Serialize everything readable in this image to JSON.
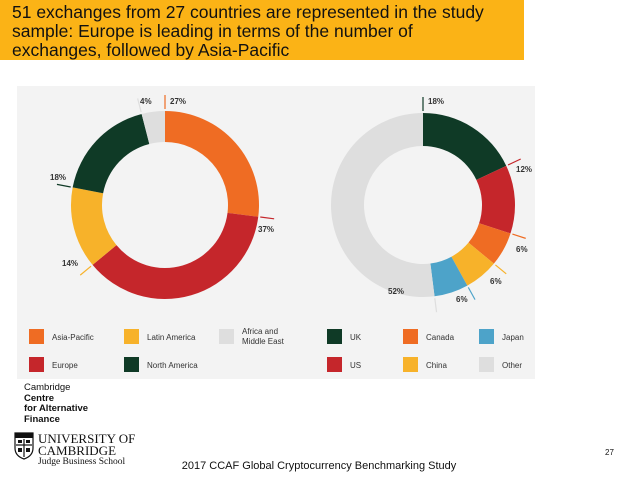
{
  "slide": {
    "title_lines": [
      "51 exchanges from 27 countries are represented in the study",
      "sample: Europe is leading in terms of the number of",
      "exchanges, followed by Asia-Pacific"
    ],
    "footer": "2017 CCAF Global Cryptocurrency Benchmarking Study",
    "page_number": "27",
    "logo_ccaf_lines": [
      "Cambridge",
      "Centre",
      "for Alternative",
      "Finance"
    ],
    "logo_uni_lines": [
      "UNIVERSITY OF",
      "CAMBRIDGE",
      "Judge Business School"
    ]
  },
  "chart_data": [
    {
      "type": "pie",
      "donut": true,
      "categories": [
        "Asia-Pacific",
        "Europe",
        "Latin America",
        "North America",
        "Africa and Middle East"
      ],
      "values": [
        27,
        37,
        14,
        18,
        4
      ],
      "labels": [
        "27%",
        "37%",
        "14%",
        "18%",
        "4%"
      ],
      "colors": [
        "#ef6c23",
        "#c5262b",
        "#f7b22a",
        "#0f3a26",
        "#dedede"
      ],
      "legend": [
        {
          "label": "Asia-Pacific",
          "color": "#ef6c23"
        },
        {
          "label": "Latin America",
          "color": "#f7b22a"
        },
        {
          "label": "Africa and Middle East",
          "lines": [
            "Africa and",
            "Middle East"
          ],
          "color": "#dedede"
        },
        {
          "label": "Europe",
          "color": "#c5262b"
        },
        {
          "label": "North America",
          "color": "#0f3a26"
        }
      ],
      "legend_position": "bottom"
    },
    {
      "type": "pie",
      "donut": true,
      "categories": [
        "UK",
        "US",
        "Canada",
        "China",
        "Japan",
        "Other"
      ],
      "values": [
        18,
        12,
        6,
        6,
        6,
        52
      ],
      "labels": [
        "18%",
        "12%",
        "6%",
        "6%",
        "6%",
        "52%"
      ],
      "colors": [
        "#0f3a26",
        "#c5262b",
        "#ef6c23",
        "#f7b22a",
        "#4da3c9",
        "#dedede"
      ],
      "legend": [
        {
          "label": "UK",
          "color": "#0f3a26"
        },
        {
          "label": "Canada",
          "color": "#ef6c23"
        },
        {
          "label": "Japan",
          "color": "#4da3c9"
        },
        {
          "label": "US",
          "color": "#c5262b"
        },
        {
          "label": "China",
          "color": "#f7b22a"
        },
        {
          "label": "Other",
          "color": "#dedede"
        }
      ],
      "legend_position": "bottom"
    }
  ]
}
